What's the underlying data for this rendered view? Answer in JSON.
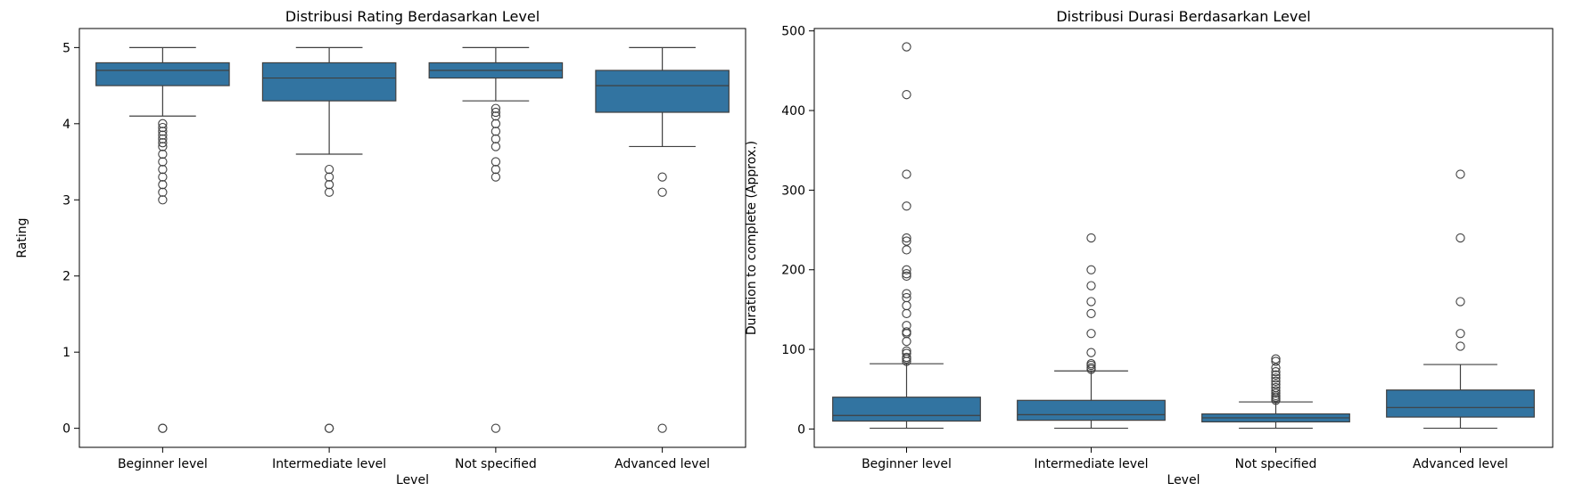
{
  "chart_data": [
    {
      "type": "box",
      "title": "Distribusi Rating Berdasarkan Level",
      "xlabel": "Level",
      "ylabel": "Rating",
      "ylim": [
        -0.25,
        5.25
      ],
      "yticks": [
        0,
        1,
        2,
        3,
        4,
        5
      ],
      "grid": false,
      "color": "#3274a1",
      "categories": [
        "Beginner level",
        "Intermediate level",
        "Not specified",
        "Advanced level"
      ],
      "boxes": [
        {
          "whisker_low": 4.1,
          "q1": 4.5,
          "median": 4.7,
          "q3": 4.8,
          "whisker_high": 5.0,
          "outliers": [
            4.0,
            3.95,
            3.9,
            3.85,
            3.8,
            3.75,
            3.7,
            3.6,
            3.5,
            3.4,
            3.3,
            3.2,
            3.1,
            3.0,
            0.0,
            0.0
          ]
        },
        {
          "whisker_low": 3.6,
          "q1": 4.3,
          "median": 4.6,
          "q3": 4.8,
          "whisker_high": 5.0,
          "outliers": [
            3.4,
            3.3,
            3.2,
            3.1,
            0.0,
            0.0
          ]
        },
        {
          "whisker_low": 4.3,
          "q1": 4.6,
          "median": 4.7,
          "q3": 4.8,
          "whisker_high": 5.0,
          "outliers": [
            4.2,
            4.15,
            4.1,
            4.0,
            3.9,
            3.8,
            3.7,
            3.5,
            3.4,
            3.3,
            0.0
          ]
        },
        {
          "whisker_low": 3.7,
          "q1": 4.15,
          "median": 4.5,
          "q3": 4.7,
          "whisker_high": 5.0,
          "outliers": [
            3.3,
            3.1,
            0.0
          ]
        }
      ]
    },
    {
      "type": "box",
      "title": "Distribusi Durasi Berdasarkan Level",
      "xlabel": "Level",
      "ylabel": "Duration to complete (Approx.)",
      "ylim": [
        -23,
        503
      ],
      "yticks": [
        0,
        100,
        200,
        300,
        400,
        500
      ],
      "grid": false,
      "color": "#3274a1",
      "categories": [
        "Beginner level",
        "Intermediate level",
        "Not specified",
        "Advanced level"
      ],
      "boxes": [
        {
          "whisker_low": 1,
          "q1": 10,
          "median": 17,
          "q3": 40,
          "whisker_high": 82,
          "outliers": [
            480,
            420,
            320,
            280,
            240,
            236,
            225,
            200,
            195,
            192,
            170,
            165,
            155,
            145,
            130,
            122,
            120,
            110,
            98,
            95,
            90,
            88,
            85
          ]
        },
        {
          "whisker_low": 1,
          "q1": 11,
          "median": 18,
          "q3": 36,
          "whisker_high": 73,
          "outliers": [
            240,
            200,
            180,
            160,
            145,
            120,
            96,
            82,
            80,
            77,
            75
          ]
        },
        {
          "whisker_low": 1,
          "q1": 9,
          "median": 14,
          "q3": 19,
          "whisker_high": 34,
          "outliers": [
            88,
            85,
            77,
            72,
            68,
            64,
            60,
            56,
            52,
            48,
            45,
            42,
            40,
            38,
            36
          ]
        },
        {
          "whisker_low": 1,
          "q1": 15,
          "median": 27,
          "q3": 49,
          "whisker_high": 81,
          "outliers": [
            320,
            240,
            160,
            120,
            104
          ]
        }
      ]
    }
  ]
}
